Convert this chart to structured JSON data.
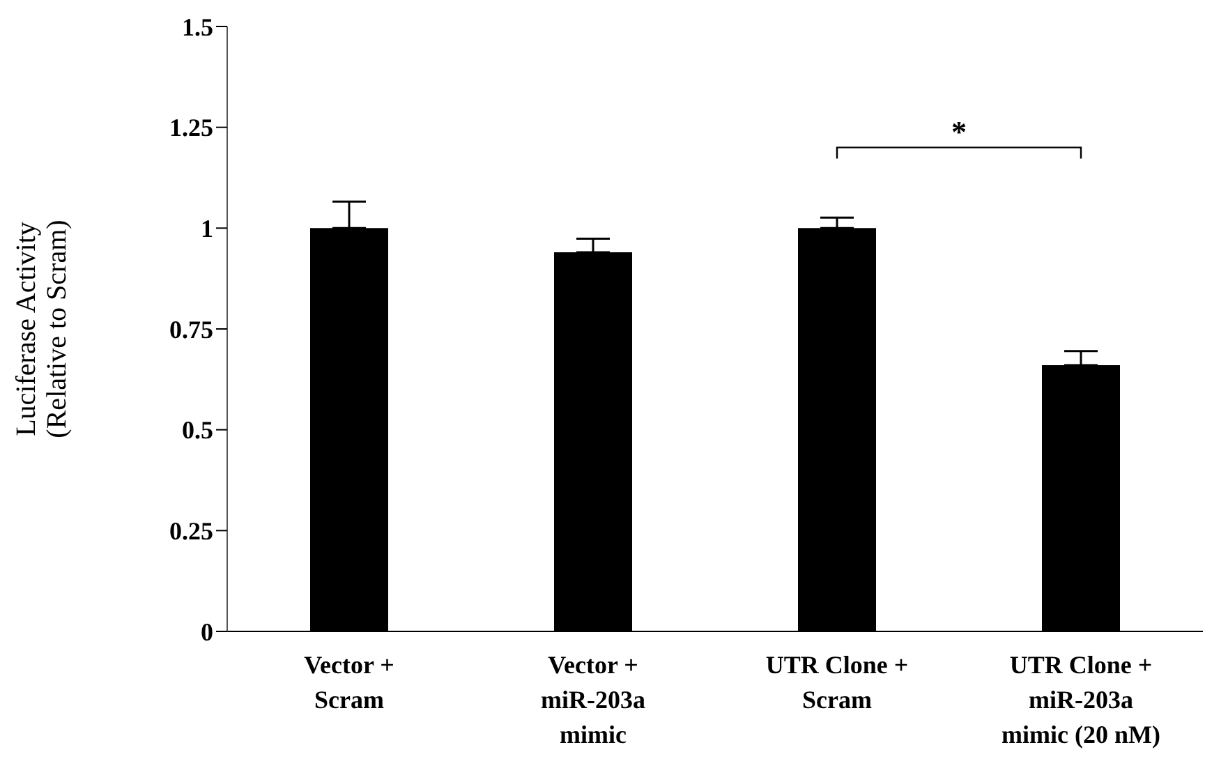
{
  "chart_data": {
    "type": "bar",
    "ylabel": "Luciferase Activity (Relative to Scram)",
    "categories": [
      "Vector + Scram",
      "Vector + miR-203a mimic",
      "UTR Clone + Scram",
      "UTR Clone + miR-203a mimic  (20 nM)"
    ],
    "values": [
      1.0,
      0.94,
      1.0,
      0.66
    ],
    "errors": [
      0.066,
      0.034,
      0.026,
      0.035
    ],
    "color": "#000000",
    "ylim": [
      0,
      1.5
    ],
    "yticks": [
      0,
      0.25,
      0.5,
      0.75,
      1,
      1.25,
      1.5
    ],
    "annotations": [
      "*"
    ]
  }
}
